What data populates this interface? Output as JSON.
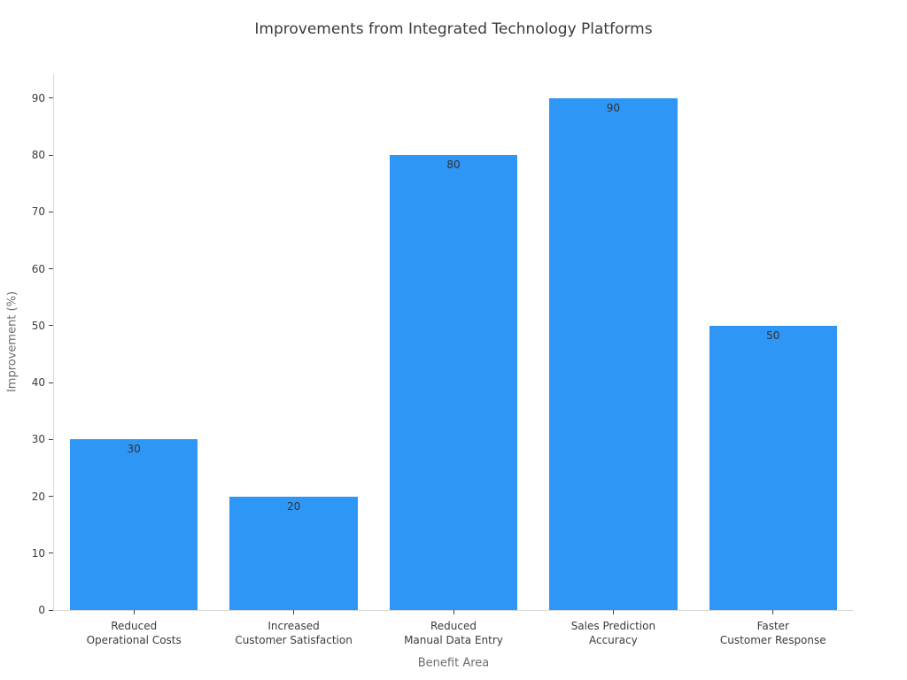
{
  "chart_data": {
    "type": "bar",
    "title": "Improvements from Integrated Technology Platforms",
    "xlabel": "Benefit Area",
    "ylabel": "Improvement (%)",
    "categories": [
      [
        "Reduced",
        "Operational Costs"
      ],
      [
        "Increased",
        "Customer Satisfaction"
      ],
      [
        "Reduced",
        "Manual Data Entry"
      ],
      [
        "Sales Prediction",
        "Accuracy"
      ],
      [
        "Faster",
        "Customer Response"
      ]
    ],
    "values": [
      30,
      20,
      80,
      90,
      50
    ],
    "value_labels": [
      "30",
      "20",
      "80",
      "90",
      "50"
    ],
    "yticks": [
      0,
      10,
      20,
      30,
      40,
      50,
      60,
      70,
      80,
      90
    ],
    "ylim": [
      0,
      94.2
    ],
    "grid": false,
    "legend": false,
    "bar_width_fraction": 0.8,
    "colors": {
      "background": "#ffffff",
      "bar": "#2E96F5",
      "title": "#3a3a3a",
      "axis_label": "#6e6e6e",
      "tick_label": "#3b3b3b",
      "spine": "#d9d9d9",
      "tick_mark": "#444444",
      "value_label": "#333333"
    }
  }
}
